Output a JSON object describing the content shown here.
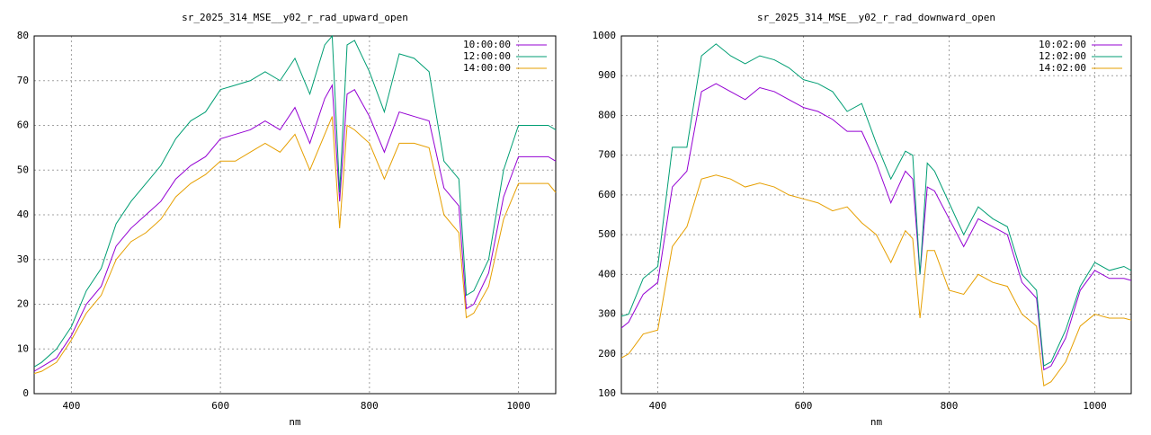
{
  "chart_data": [
    {
      "type": "line",
      "title": "sr_2025_314_MSE__y02_r_rad_upward_open",
      "x_label": "nm",
      "x": [
        350,
        360,
        380,
        400,
        420,
        440,
        460,
        480,
        500,
        520,
        540,
        560,
        580,
        600,
        620,
        640,
        660,
        680,
        700,
        720,
        740,
        750,
        760,
        770,
        780,
        800,
        820,
        840,
        860,
        880,
        900,
        920,
        930,
        940,
        960,
        980,
        1000,
        1020,
        1040,
        1050
      ],
      "xlim": [
        350,
        1050
      ],
      "xticks": [
        400,
        600,
        800,
        1000
      ],
      "ylim": [
        0,
        80
      ],
      "yticks": [
        0,
        10,
        20,
        30,
        40,
        50,
        60,
        70,
        80
      ],
      "grid": true,
      "legend": "top-right",
      "series": [
        {
          "name": "10:00:00",
          "color": "#9400d3",
          "values": [
            5,
            6,
            8,
            13,
            20,
            24,
            33,
            37,
            40,
            43,
            48,
            51,
            53,
            57,
            58,
            59,
            61,
            59,
            64,
            56,
            66,
            69,
            43,
            67,
            68,
            62,
            54,
            63,
            62,
            61,
            46,
            42,
            19,
            20,
            27,
            44,
            53,
            53,
            53,
            52
          ]
        },
        {
          "name": "12:00:00",
          "color": "#009e73",
          "values": [
            6,
            7,
            10,
            15,
            23,
            28,
            38,
            43,
            47,
            51,
            57,
            61,
            63,
            68,
            69,
            70,
            72,
            70,
            75,
            67,
            78,
            80,
            45,
            78,
            79,
            72,
            63,
            76,
            75,
            72,
            52,
            48,
            22,
            23,
            30,
            50,
            60,
            60,
            60,
            59
          ]
        },
        {
          "name": "14:00:00",
          "color": "#e69f00",
          "values": [
            4.5,
            5,
            7,
            12,
            18,
            22,
            30,
            34,
            36,
            39,
            44,
            47,
            49,
            52,
            52,
            54,
            56,
            54,
            58,
            50,
            58,
            62,
            37,
            60,
            59,
            56,
            48,
            56,
            56,
            55,
            40,
            36,
            17,
            18,
            24,
            39,
            47,
            47,
            47,
            45
          ]
        }
      ]
    },
    {
      "type": "line",
      "title": "sr_2025_314_MSE__y02_r_rad_downward_open",
      "x_label": "nm",
      "x": [
        350,
        360,
        380,
        400,
        420,
        440,
        460,
        480,
        500,
        520,
        540,
        560,
        580,
        600,
        620,
        640,
        660,
        680,
        700,
        720,
        740,
        750,
        760,
        770,
        780,
        800,
        820,
        840,
        860,
        880,
        900,
        920,
        930,
        940,
        960,
        980,
        1000,
        1020,
        1040,
        1050
      ],
      "xlim": [
        350,
        1050
      ],
      "xticks": [
        400,
        600,
        800,
        1000
      ],
      "ylim": [
        100,
        1000
      ],
      "yticks": [
        100,
        200,
        300,
        400,
        500,
        600,
        700,
        800,
        900,
        1000
      ],
      "grid": true,
      "legend": "top-right",
      "series": [
        {
          "name": "10:02:00",
          "color": "#9400d3",
          "values": [
            265,
            280,
            350,
            380,
            620,
            660,
            860,
            880,
            860,
            840,
            870,
            860,
            840,
            820,
            810,
            790,
            760,
            760,
            680,
            580,
            660,
            640,
            400,
            620,
            610,
            540,
            470,
            540,
            520,
            500,
            380,
            340,
            160,
            170,
            240,
            360,
            410,
            390,
            390,
            385
          ]
        },
        {
          "name": "12:02:00",
          "color": "#009e73",
          "values": [
            295,
            300,
            390,
            420,
            720,
            720,
            950,
            980,
            950,
            930,
            950,
            940,
            920,
            890,
            880,
            860,
            810,
            830,
            730,
            640,
            710,
            700,
            400,
            680,
            660,
            580,
            500,
            570,
            540,
            520,
            400,
            360,
            170,
            180,
            260,
            370,
            430,
            410,
            420,
            410
          ]
        },
        {
          "name": "14:02:00",
          "color": "#e69f00",
          "values": [
            190,
            200,
            250,
            260,
            470,
            520,
            640,
            650,
            640,
            620,
            630,
            620,
            600,
            590,
            580,
            560,
            570,
            530,
            500,
            430,
            510,
            490,
            290,
            460,
            460,
            360,
            350,
            400,
            380,
            370,
            300,
            270,
            120,
            130,
            180,
            270,
            300,
            290,
            290,
            285
          ]
        }
      ]
    }
  ]
}
